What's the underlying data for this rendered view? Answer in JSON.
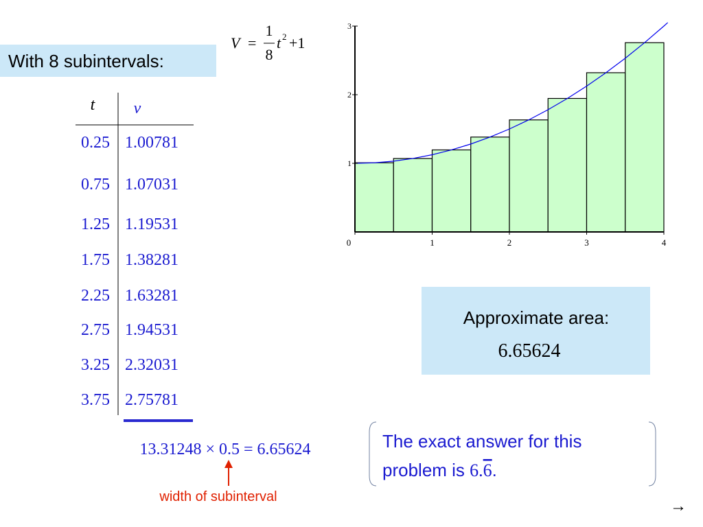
{
  "heading": "With 8 subintervals:",
  "formula": {
    "lhs": "V",
    "eq": "=",
    "numerator": "1",
    "denominator": "8",
    "variable": "t",
    "exponent": "2",
    "rest": "+1"
  },
  "table": {
    "header": [
      "t",
      "v"
    ],
    "t": [
      "0.25",
      "0.75",
      "1.25",
      "1.75",
      "2.25",
      "2.75",
      "3.25",
      "3.75"
    ]
  },
  "sum_expression": "13.31248 × 0.5 = 6.65624",
  "annotation": "width of subinterval",
  "approx": {
    "label": "Approximate area:",
    "value": "6.65624"
  },
  "exact": {
    "line1": "The exact answer for this",
    "line2": "problem is ",
    "whole": "6.",
    "repeating": "6",
    "end": "."
  },
  "nav": "→",
  "chart_data": {
    "type": "histogram",
    "bins": [
      0,
      0.5,
      1,
      1.5,
      2,
      2.5,
      3,
      3.5,
      4
    ],
    "values": [
      1.00781,
      1.07031,
      1.19531,
      1.38281,
      1.63281,
      1.94531,
      2.32031,
      2.75781
    ],
    "color": "#ccffcc",
    "curve": {
      "color": "#0000ee",
      "x": [
        0,
        0.25,
        0.5,
        0.75,
        1,
        1.25,
        1.5,
        1.75,
        2,
        2.25,
        2.5,
        2.75,
        3,
        3.25,
        3.5,
        3.75,
        4,
        4.05
      ],
      "values": [
        1,
        1.0078,
        1.0313,
        1.0703,
        1.125,
        1.1953,
        1.2813,
        1.3828,
        1.5,
        1.6328,
        1.7813,
        1.9453,
        2.125,
        2.3203,
        2.5313,
        2.7578,
        3,
        3.0503
      ]
    },
    "xlim": [
      0,
      4
    ],
    "ylim": [
      0,
      3
    ],
    "xticks": [
      0,
      1,
      2,
      3,
      4
    ],
    "yticks": [
      1,
      2,
      3
    ]
  }
}
